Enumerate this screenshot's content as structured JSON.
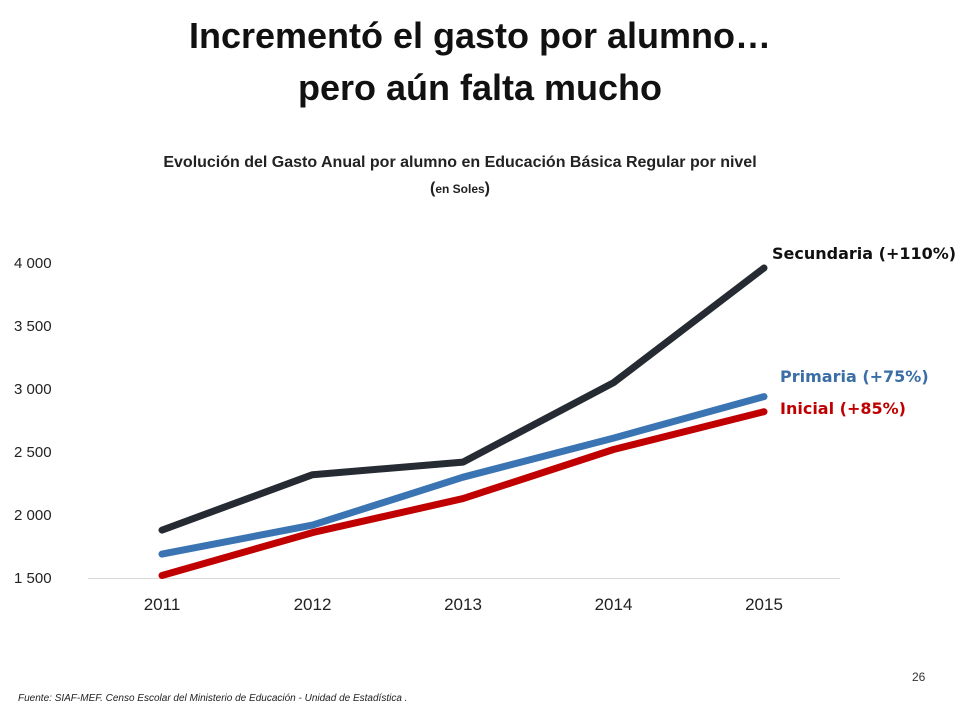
{
  "slide": {
    "title_line1": "Incrementó el gasto por alumno…",
    "title_line2": "pero aún falta mucho",
    "footnote": "Fuente: SIAF-MEF.  Censo Escolar del Ministerio de Educación - Unidad de Estadística .",
    "page_number": "26"
  },
  "chart_data": {
    "type": "line",
    "title": "Evolución del Gasto Anual por alumno en Educación Básica Regular por nivel",
    "subtitle": "en Soles",
    "xlabel": "",
    "ylabel": "",
    "categories": [
      "2011",
      "2012",
      "2013",
      "2014",
      "2015"
    ],
    "ylim": [
      1500,
      4000
    ],
    "yticks": [
      1500,
      2000,
      2500,
      3000,
      3500,
      4000
    ],
    "ytick_labels": [
      "1 500",
      "2 000",
      "2 500",
      "3 000",
      "3 500",
      "4 000"
    ],
    "grid": false,
    "series": [
      {
        "name": "Secundaria",
        "label": "Secundaria (+110%)",
        "color": "#262b33",
        "label_color": "#111111",
        "values": [
          1880,
          2320,
          2420,
          3050,
          3960
        ]
      },
      {
        "name": "Primaria",
        "label": "Primaria (+75%)",
        "color": "#3a74b3",
        "label_color": "#3a6ea5",
        "values": [
          1690,
          1920,
          2300,
          2610,
          2940
        ]
      },
      {
        "name": "Inicial",
        "label": "Inicial (+85%)",
        "color": "#c00000",
        "label_color": "#c00000",
        "values": [
          1520,
          1860,
          2130,
          2520,
          2820
        ]
      }
    ]
  }
}
